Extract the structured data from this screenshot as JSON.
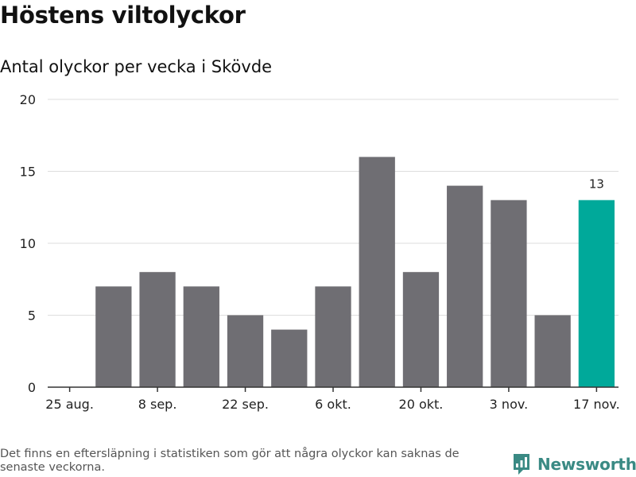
{
  "header": {
    "title": "Höstens viltolyckor",
    "subtitle": "Antal olyckor per vecka i Skövde"
  },
  "chart_data": {
    "type": "bar",
    "title": "Höstens viltolyckor",
    "subtitle": "Antal olyckor per vecka i Skövde",
    "xlabel": "",
    "ylabel": "",
    "ylim": [
      0,
      20
    ],
    "yticks": [
      0,
      5,
      10,
      15,
      20
    ],
    "grid": true,
    "legend": "none",
    "categories": [
      "25 aug.",
      "1 sep.",
      "8 sep.",
      "15 sep.",
      "22 sep.",
      "29 sep.",
      "6 okt.",
      "13 okt.",
      "20 okt.",
      "27 okt.",
      "3 nov.",
      "10 nov.",
      "17 nov."
    ],
    "values": [
      null,
      7,
      8,
      7,
      5,
      4,
      7,
      16,
      8,
      14,
      13,
      5,
      13
    ],
    "x_tick_labels": [
      "25 aug.",
      "8 sep.",
      "22 sep.",
      "6 okt.",
      "20 okt.",
      "3 nov.",
      "17 nov."
    ],
    "highlight": {
      "category": "17 nov.",
      "label": "13"
    },
    "colors": {
      "bar": "#6f6e73",
      "highlight": "#00a99a",
      "grid": "#dddddd",
      "axis": "#333333"
    }
  },
  "footer": {
    "note": "Det finns en eftersläpning i statistiken som gör att några olyckor kan saknas de senaste veckorna.",
    "brand": "Newsworthy",
    "brand_icon": "newsworthy-logo-icon",
    "brand_color": "#3a8a84"
  }
}
